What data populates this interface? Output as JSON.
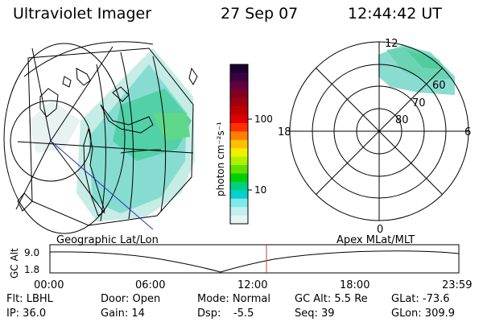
{
  "header": {
    "title": "Ultraviolet Imager",
    "date": "27 Sep 07",
    "time": "12:44:42 UT"
  },
  "colorbar": {
    "unit_label": "photon cm⁻²s⁻¹",
    "ticks": [
      {
        "label": "100",
        "value": 100
      },
      {
        "label": "10",
        "value": 10
      }
    ],
    "colors": [
      "#1a0030",
      "#3a0040",
      "#600040",
      "#800020",
      "#a00010",
      "#c00000",
      "#e00000",
      "#ff3000",
      "#ff8000",
      "#ffc000",
      "#f0f000",
      "#b0f000",
      "#60e000",
      "#00d000",
      "#00d080",
      "#00d0d0",
      "#80e8e8",
      "#c0f0f0",
      "#e6f4f4"
    ]
  },
  "left_panel": {
    "name": "Geographic Lat/Lon"
  },
  "right_panel": {
    "name": "Apex MLat/MLT",
    "mlt_labels": {
      "top": "12",
      "left": "18",
      "right": "6",
      "bottom": "0"
    },
    "lat_labels": [
      "60",
      "70",
      "80"
    ]
  },
  "timeline": {
    "ylabel": "GC Alt",
    "y_ticks": [
      "9.0",
      "1.8"
    ],
    "x_ticks": [
      "00:00",
      "06:00",
      "12:00",
      "18:00",
      "23:59"
    ],
    "marker_time": "12:44",
    "marker_color": "#c04040"
  },
  "info": {
    "flt": "Flt: LBHL",
    "ip": "IP: 36.0",
    "door": "Door: Open",
    "gain": "Gain: 14",
    "mode": "Mode: Normal",
    "dsp_label": "Dsp:",
    "dsp_value": "-5.5",
    "gc_alt": "GC Alt: 5.5 Re",
    "seq": "Seq: 39",
    "glat": "GLat: -73.6",
    "glon": "GLon: 309.9"
  }
}
